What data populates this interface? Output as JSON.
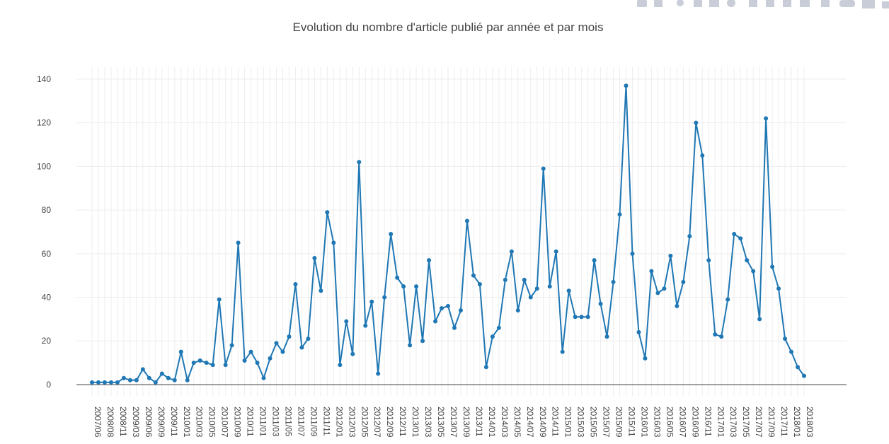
{
  "chart_data": {
    "type": "line",
    "title": "Evolution du nombre d'article publié par année et par mois",
    "categories": [
      "2007/06",
      null,
      "2008/08",
      null,
      "2008/11",
      null,
      "2009/03",
      null,
      "2009/06",
      null,
      "2009/09",
      null,
      "2009/11",
      null,
      "2010/01",
      null,
      "2010/03",
      null,
      "2010/05",
      null,
      "2010/07",
      null,
      "2010/09",
      null,
      "2010/11",
      null,
      "2011/01",
      null,
      "2011/03",
      null,
      "2011/05",
      null,
      "2011/07",
      null,
      "2011/09",
      null,
      "2011/11",
      null,
      "2012/01",
      null,
      "2012/03",
      null,
      "2012/05",
      null,
      "2012/07",
      null,
      "2012/09",
      null,
      "2012/11",
      null,
      "2013/01",
      null,
      "2013/03",
      null,
      "2013/05",
      null,
      "2013/07",
      null,
      "2013/09",
      null,
      "2013/11",
      null,
      "2014/01",
      null,
      "2014/03",
      null,
      "2014/05",
      null,
      "2014/07",
      null,
      "2014/09",
      null,
      "2014/11",
      null,
      "2015/01",
      null,
      "2015/03",
      null,
      "2015/05",
      null,
      "2015/07",
      null,
      "2015/09",
      null,
      "2015/11",
      null,
      "2016/01",
      null,
      "2016/03",
      null,
      "2016/05",
      null,
      "2016/07",
      null,
      "2016/09",
      null,
      "2016/11",
      null,
      "2017/01",
      null,
      "2017/03",
      null,
      "2017/05",
      null,
      "2017/07",
      null,
      "2017/09",
      null,
      "2017/11",
      null,
      "2018/01",
      null,
      "2018/03"
    ],
    "series": [
      {
        "color": "#1f77b4",
        "values": [
          1,
          1,
          1,
          1,
          1,
          3,
          2,
          2,
          7,
          3,
          1,
          5,
          3,
          2,
          15,
          2,
          10,
          11,
          10,
          9,
          39,
          9,
          18,
          65,
          11,
          15,
          10,
          3,
          12,
          19,
          15,
          22,
          46,
          17,
          21,
          58,
          43,
          79,
          65,
          9,
          29,
          14,
          102,
          27,
          38,
          5,
          40,
          69,
          49,
          45,
          18,
          45,
          20,
          57,
          29,
          35,
          36,
          26,
          34,
          75,
          50,
          46,
          8,
          22,
          26,
          48,
          61,
          34,
          48,
          40,
          44,
          99,
          45,
          61,
          15,
          43,
          31,
          31,
          31,
          57,
          37,
          22,
          47,
          78,
          137,
          60,
          24,
          12,
          52,
          42,
          44,
          59,
          36,
          47,
          68,
          120,
          105,
          57,
          23,
          22,
          39,
          69,
          67,
          57,
          52,
          30,
          122,
          54,
          44,
          21,
          15,
          8,
          4
        ]
      }
    ],
    "ylim": [
      -5.2,
      145.5
    ],
    "yticks": [
      0,
      20,
      40,
      60,
      80,
      100,
      120,
      140
    ],
    "grid": true
  }
}
